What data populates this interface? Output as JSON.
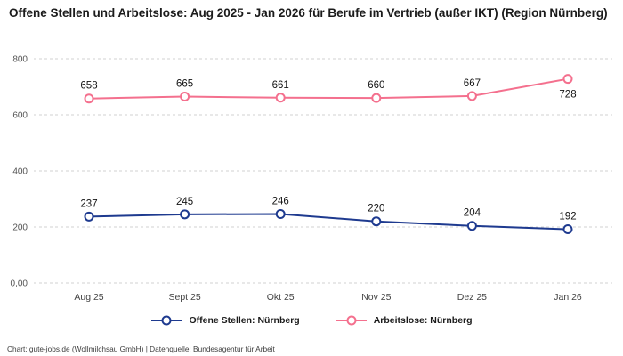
{
  "header": {
    "title": "Offene Stellen und Arbeitslose: Aug 2025 - Jan 2026 für Berufe im Vertrieb (außer IKT) (Region Nürnberg)"
  },
  "chart_data": {
    "type": "line",
    "categories": [
      "Aug 25",
      "Sept 25",
      "Okt 25",
      "Nov 25",
      "Dez 25",
      "Jan 26"
    ],
    "series": [
      {
        "name": "Offene Stellen: Nürnberg",
        "color": "#1e3a8f",
        "values": [
          237,
          245,
          246,
          220,
          204,
          192
        ],
        "label_below": [
          false,
          false,
          false,
          false,
          false,
          false
        ]
      },
      {
        "name": "Arbeitslose: Nürnberg",
        "color": "#f4708e",
        "values": [
          658,
          665,
          661,
          660,
          667,
          728
        ],
        "label_below": [
          false,
          false,
          false,
          false,
          false,
          true
        ]
      }
    ],
    "y_ticks": [
      {
        "value": 0,
        "label": "0,00"
      },
      {
        "value": 200,
        "label": "200"
      },
      {
        "value": 400,
        "label": "400"
      },
      {
        "value": 600,
        "label": "600"
      },
      {
        "value": 800,
        "label": "800"
      }
    ],
    "ylim": [
      0,
      800
    ],
    "grid": "dashed-horizontal",
    "legend_position": "bottom",
    "colors": {
      "grid": "#d2d2d2",
      "axis_text": "#555555",
      "data_label": "#141414"
    }
  },
  "footer": {
    "credit": "Chart: gute-jobs.de (Wollmilchsau GmbH) | Datenquelle: Bundesagentur für Arbeit"
  }
}
